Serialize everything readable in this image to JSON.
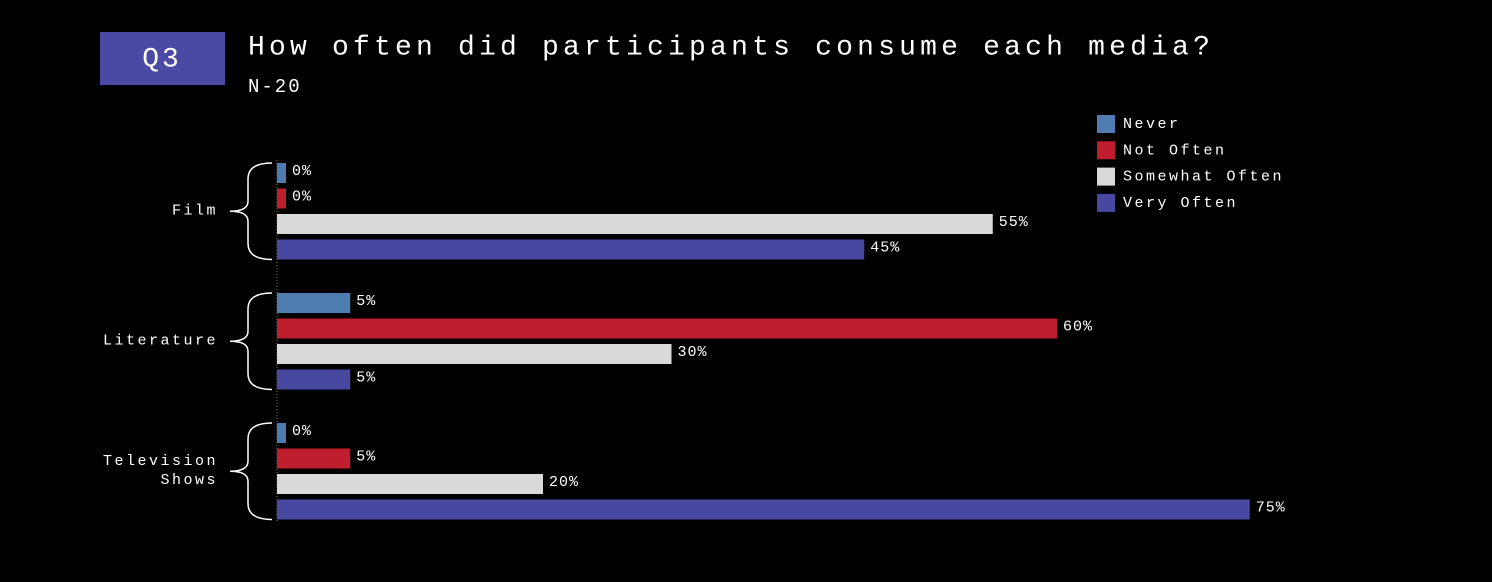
{
  "chart_data": {
    "type": "bar",
    "orientation": "horizontal",
    "badge": "Q3",
    "title": "How often did participants consume each media?",
    "subtitle": "N-20",
    "categories": [
      "Film",
      "Literature",
      "Television Shows"
    ],
    "series": [
      {
        "name": "Never",
        "color": "#4f7db0",
        "values": [
          0,
          5,
          0
        ],
        "value_labels": [
          "0%",
          "5%",
          "0%"
        ]
      },
      {
        "name": "Not Often",
        "color": "#be1e2d",
        "values": [
          0,
          60,
          5
        ],
        "value_labels": [
          "0%",
          "60%",
          "5%"
        ]
      },
      {
        "name": "Somewhat Often",
        "color": "#d9d9d9",
        "values": [
          55,
          30,
          20
        ],
        "value_labels": [
          "55%",
          "30%",
          "20%"
        ]
      },
      {
        "name": "Very Often",
        "color": "#4848a0",
        "values": [
          45,
          5,
          75
        ],
        "value_labels": [
          "45%",
          "5%",
          "75%"
        ]
      }
    ],
    "legend": "top-right"
  }
}
